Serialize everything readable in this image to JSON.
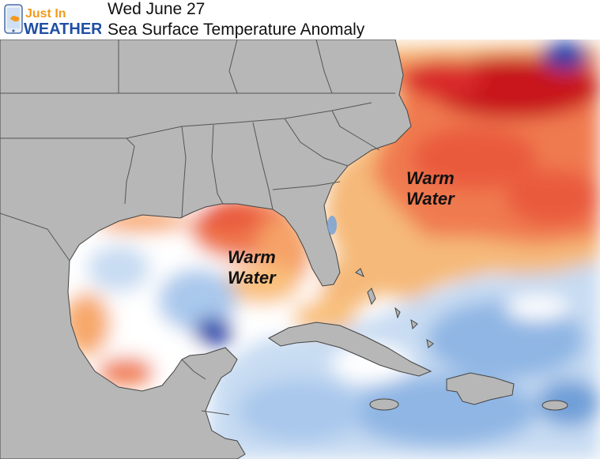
{
  "header": {
    "logo": {
      "line1": "Just In",
      "line2": "WEATHER"
    },
    "date": "Wed June 27",
    "title": "Sea Surface Temperature Anomaly"
  },
  "annotations": {
    "atlantic": "Warm\nWater",
    "gulf": "Warm\nWater"
  },
  "colors": {
    "land": "#b7b7b7",
    "borders": "#555555",
    "warm_strong": "#c8141e",
    "warm": "#f07a50",
    "warm_light": "#f9c07c",
    "neutral": "#ffffff",
    "cool_light": "#c7dbf2",
    "cool": "#6f9fd8",
    "cool_strong": "#1b3fa8",
    "logo_blue": "#1f4fa3",
    "logo_orange": "#f39a1c"
  }
}
